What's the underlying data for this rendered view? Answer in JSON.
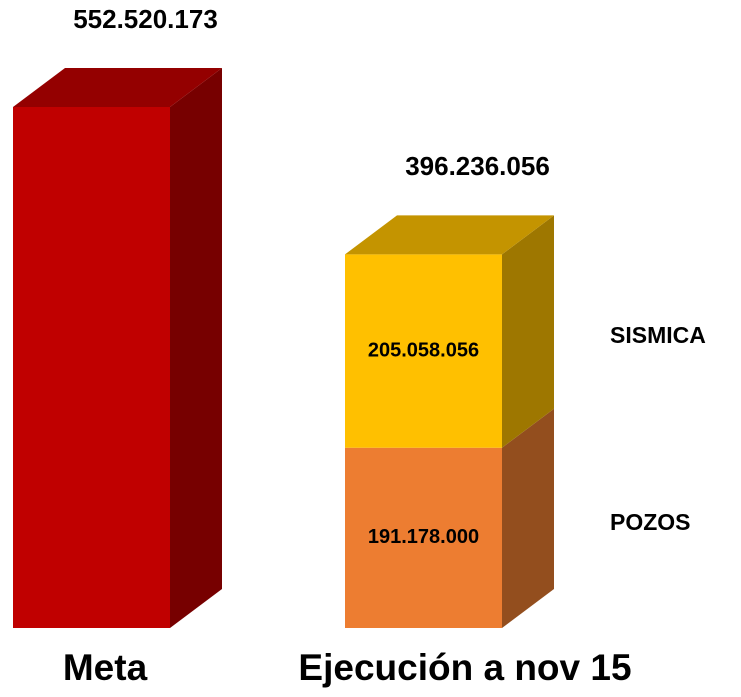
{
  "chart_data": {
    "type": "bar3d_stacked",
    "categories": [
      "Meta",
      "Ejecución a nov 15"
    ],
    "totals": {
      "values": [
        552520173,
        396236056
      ],
      "value_labels": [
        "552.520.173",
        "396.236.056"
      ],
      "color": "#c00000"
    },
    "series": [
      {
        "name": "POZOS",
        "color": "#ed7d31",
        "values": [
          null,
          191178000
        ],
        "value_labels": [
          null,
          "191.178.000"
        ]
      },
      {
        "name": "SISMICA",
        "color": "#ffc000",
        "values": [
          null,
          205058056
        ],
        "value_labels": [
          null,
          "205.058.056"
        ]
      }
    ]
  }
}
